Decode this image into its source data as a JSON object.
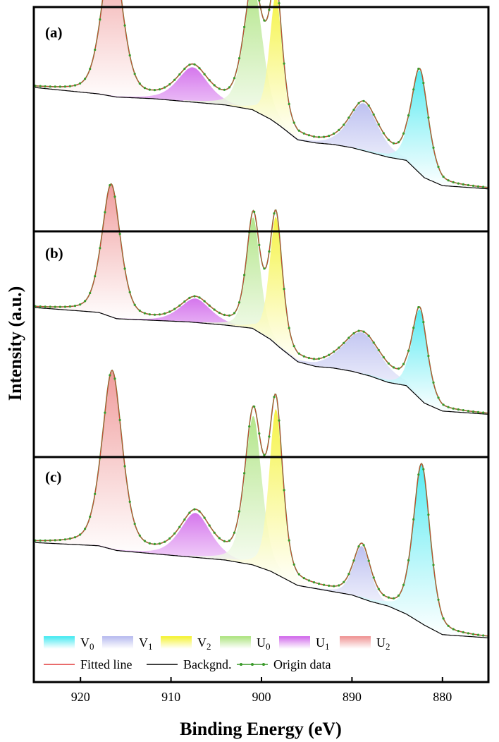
{
  "chart_data": {
    "type": "area",
    "xlabel": "Binding Energy (eV)",
    "ylabel": "Intensity (a.u.)",
    "xlim": [
      925,
      875
    ],
    "x_reversed": true,
    "xticks": [
      920,
      910,
      900,
      890,
      880
    ],
    "yticks_shown": false,
    "legend": {
      "placement": "bottom-left of panel (c)",
      "components": [
        {
          "base": "V",
          "sub": "0",
          "color": "#3fe8f0"
        },
        {
          "base": "V",
          "sub": "1",
          "color": "#b4b8ee"
        },
        {
          "base": "V",
          "sub": "2",
          "color": "#f4f22a"
        },
        {
          "base": "U",
          "sub": "0",
          "color": "#a9e27a"
        },
        {
          "base": "U",
          "sub": "1",
          "color": "#cf63ea"
        },
        {
          "base": "U",
          "sub": "2",
          "color": "#ee8f8f"
        }
      ],
      "lines": [
        {
          "label": "Fitted line",
          "color": "#e23b3b",
          "marker": false
        },
        {
          "label": "Backgnd.",
          "color": "#000000",
          "marker": false
        },
        {
          "label": "Origin data",
          "color": "#3a9a2a",
          "marker": true
        }
      ]
    },
    "panels": [
      {
        "tag": "(a)",
        "background": [
          [
            925,
            0.9
          ],
          [
            918,
            0.86
          ],
          [
            916,
            0.84
          ],
          [
            912,
            0.83
          ],
          [
            908,
            0.81
          ],
          [
            904,
            0.79
          ],
          [
            901,
            0.76
          ],
          [
            899,
            0.7
          ],
          [
            898,
            0.66
          ],
          [
            896,
            0.57
          ],
          [
            894,
            0.55
          ],
          [
            892,
            0.54
          ],
          [
            890,
            0.52
          ],
          [
            888,
            0.49
          ],
          [
            886,
            0.46
          ],
          [
            884,
            0.44
          ],
          [
            882,
            0.33
          ],
          [
            880,
            0.28
          ],
          [
            875,
            0.26
          ]
        ],
        "components": [
          {
            "name": "U2",
            "center": 916.5,
            "height": 0.95,
            "width": 1.2
          },
          {
            "name": "U1",
            "center": 907.6,
            "height": 0.22,
            "width": 1.8
          },
          {
            "name": "U0",
            "center": 900.9,
            "height": 0.79,
            "width": 1.1
          },
          {
            "name": "V2",
            "center": 898.4,
            "height": 0.81,
            "width": 0.75
          },
          {
            "name": "V1",
            "center": 888.7,
            "height": 0.3,
            "width": 1.7
          },
          {
            "name": "V0",
            "center": 882.5,
            "height": 0.65,
            "width": 1.0
          }
        ]
      },
      {
        "tag": "(b)",
        "background": [
          [
            925,
            0.93
          ],
          [
            918,
            0.9
          ],
          [
            916,
            0.86
          ],
          [
            912,
            0.85
          ],
          [
            908,
            0.84
          ],
          [
            904,
            0.82
          ],
          [
            901,
            0.8
          ],
          [
            899,
            0.73
          ],
          [
            898,
            0.68
          ],
          [
            896,
            0.59
          ],
          [
            894,
            0.56
          ],
          [
            892,
            0.55
          ],
          [
            890,
            0.53
          ],
          [
            888,
            0.5
          ],
          [
            886,
            0.46
          ],
          [
            884,
            0.44
          ],
          [
            882,
            0.33
          ],
          [
            880,
            0.28
          ],
          [
            875,
            0.26
          ]
        ],
        "components": [
          {
            "name": "U2",
            "center": 916.6,
            "height": 0.83,
            "width": 1.1
          },
          {
            "name": "U1",
            "center": 907.3,
            "height": 0.15,
            "width": 1.8
          },
          {
            "name": "U0",
            "center": 900.9,
            "height": 0.7,
            "width": 0.8
          },
          {
            "name": "V2",
            "center": 898.4,
            "height": 0.8,
            "width": 0.75
          },
          {
            "name": "V1",
            "center": 888.9,
            "height": 0.26,
            "width": 2.2
          },
          {
            "name": "V0",
            "center": 882.5,
            "height": 0.56,
            "width": 0.9
          }
        ]
      },
      {
        "tag": "(c)",
        "background": [
          [
            925,
            0.87
          ],
          [
            918,
            0.85
          ],
          [
            916,
            0.82
          ],
          [
            912,
            0.8
          ],
          [
            908,
            0.78
          ],
          [
            904,
            0.76
          ],
          [
            901,
            0.73
          ],
          [
            899,
            0.69
          ],
          [
            898,
            0.66
          ],
          [
            896,
            0.6
          ],
          [
            894,
            0.58
          ],
          [
            892,
            0.56
          ],
          [
            890,
            0.54
          ],
          [
            888,
            0.5
          ],
          [
            886,
            0.47
          ],
          [
            884,
            0.42
          ],
          [
            882,
            0.35
          ],
          [
            880,
            0.29
          ],
          [
            875,
            0.27
          ]
        ],
        "components": [
          {
            "name": "U2",
            "center": 916.5,
            "height": 1.12,
            "width": 1.2
          },
          {
            "name": "U1",
            "center": 907.3,
            "height": 0.28,
            "width": 1.8
          },
          {
            "name": "U0",
            "center": 900.9,
            "height": 0.94,
            "width": 1.0
          },
          {
            "name": "V2",
            "center": 898.4,
            "height": 1.04,
            "width": 0.8
          },
          {
            "name": "V1",
            "center": 888.9,
            "height": 0.33,
            "width": 1.0
          },
          {
            "name": "V0",
            "center": 882.3,
            "height": 1.0,
            "width": 1.0
          }
        ]
      }
    ]
  }
}
